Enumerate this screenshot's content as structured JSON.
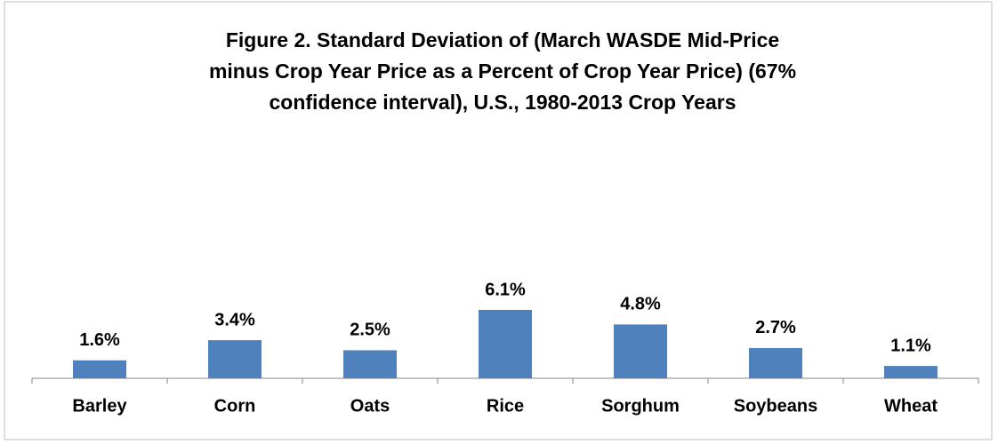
{
  "chart_data": {
    "type": "bar",
    "title": "Figure 2.  Standard Deviation of (March WASDE Mid-Price\nminus Crop Year Price as a Percent of Crop Year Price) (67%\nconfidence interval), U.S., 1980-2013 Crop Years",
    "categories": [
      "Barley",
      "Corn",
      "Oats",
      "Rice",
      "Sorghum",
      "Soybeans",
      "Wheat"
    ],
    "values": [
      1.6,
      3.4,
      2.5,
      6.1,
      4.8,
      2.7,
      1.1
    ],
    "value_labels": [
      "1.6%",
      "3.4%",
      "2.5%",
      "6.1%",
      "4.8%",
      "2.7%",
      "1.1%"
    ],
    "color": "#4f81bd"
  }
}
